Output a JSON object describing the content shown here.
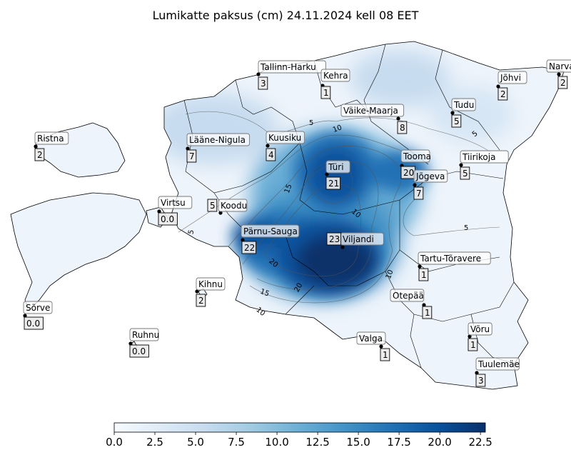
{
  "title": "Lumikatte paksus (cm) 24.11.2024 kell 08 EET",
  "colorbar": {
    "ticks": [
      "0.0",
      "2.5",
      "5.0",
      "7.5",
      "10.0",
      "12.5",
      "15.0",
      "17.5",
      "20.0",
      "22.5"
    ],
    "colors": [
      "#f7fbff",
      "#deebf7",
      "#c6dbef",
      "#9ecae1",
      "#6baed6",
      "#4292c6",
      "#2171b5",
      "#08519c",
      "#08306b"
    ]
  },
  "contour_labels": [
    "5",
    "10",
    "15",
    "5",
    "10",
    "5",
    "5",
    "20",
    "15",
    "10",
    "10",
    "20"
  ],
  "stations": [
    {
      "name": "Tallinn-Harku",
      "value": "3"
    },
    {
      "name": "Kehra",
      "value": "1"
    },
    {
      "name": "Narva",
      "value": "2"
    },
    {
      "name": "Jõhvi",
      "value": "2"
    },
    {
      "name": "Väike-Maarja",
      "value": "8"
    },
    {
      "name": "Tudu",
      "value": "5"
    },
    {
      "name": "Ristna",
      "value": "2"
    },
    {
      "name": "Lääne-Nigula",
      "value": "7"
    },
    {
      "name": "Kuusiku",
      "value": "4"
    },
    {
      "name": "Türi",
      "value": "21"
    },
    {
      "name": "Tooma",
      "value": "20"
    },
    {
      "name": "Tiirikoja",
      "value": "5"
    },
    {
      "name": "Jõgeva",
      "value": "7"
    },
    {
      "name": "Virtsu",
      "value": "0.0"
    },
    {
      "name": "Koodu",
      "value": "5"
    },
    {
      "name": "Pärnu-Sauga",
      "value": "22"
    },
    {
      "name": "Viljandi",
      "value": "23"
    },
    {
      "name": "Tartu-Tõravere",
      "value": "1"
    },
    {
      "name": "Kihnu",
      "value": "2"
    },
    {
      "name": "Otepää",
      "value": "1"
    },
    {
      "name": "Sõrve",
      "value": "0.0"
    },
    {
      "name": "Ruhnu",
      "value": "0.0"
    },
    {
      "name": "Valga",
      "value": "1"
    },
    {
      "name": "Võru",
      "value": "1"
    },
    {
      "name": "Tuulemäe",
      "value": "3"
    }
  ]
}
